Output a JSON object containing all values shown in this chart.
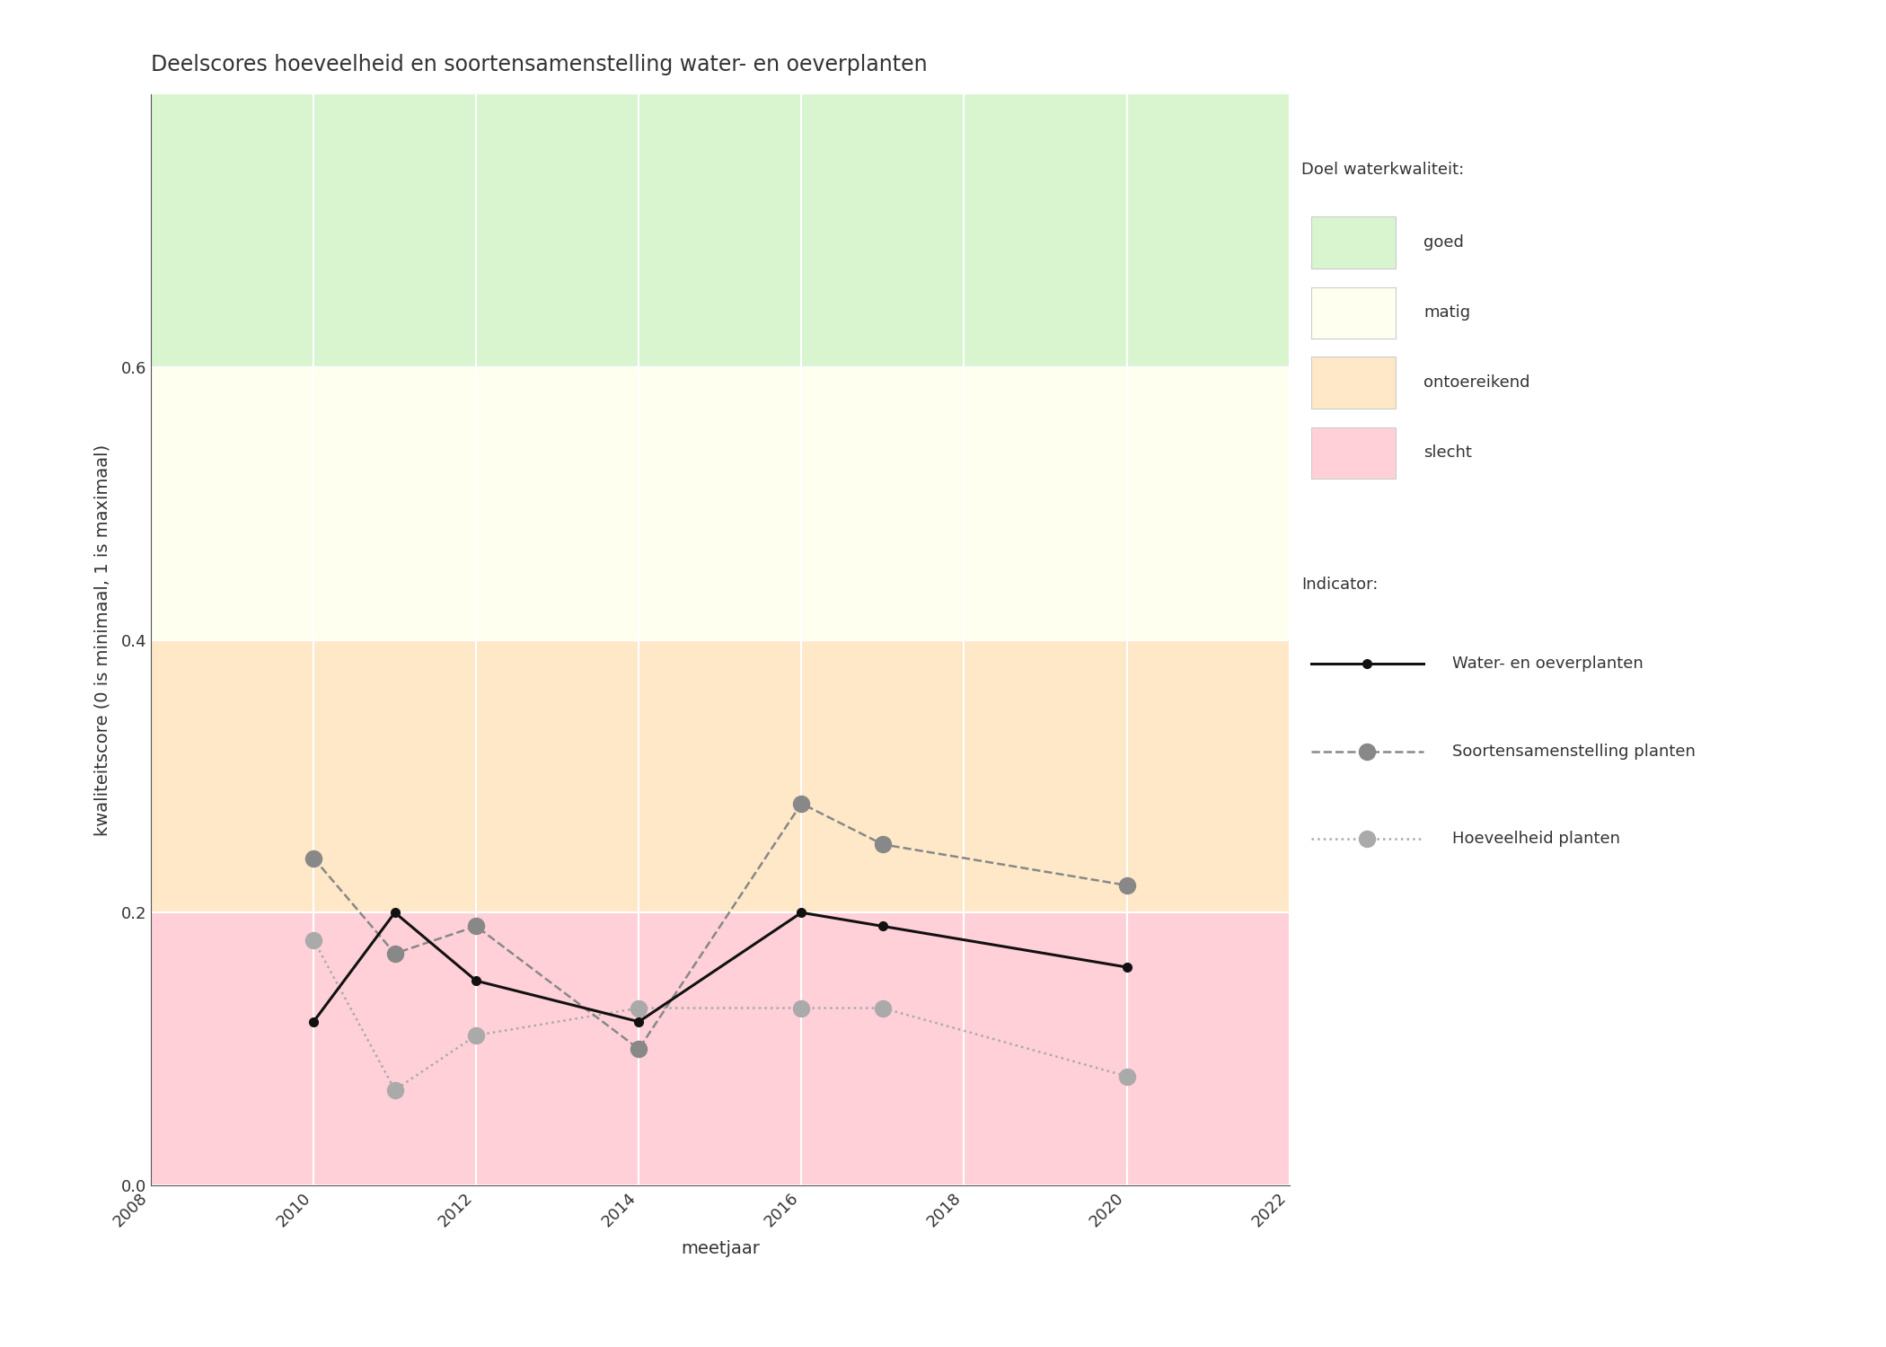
{
  "title": "Deelscores hoeveelheid en soortensamenstelling water- en oeverplanten",
  "xlabel": "meetjaar",
  "ylabel": "kwaliteitscore (0 is minimaal, 1 is maximaal)",
  "xlim": [
    2008,
    2022
  ],
  "ylim": [
    0.0,
    0.8
  ],
  "xticks": [
    2008,
    2010,
    2012,
    2014,
    2016,
    2018,
    2020,
    2022
  ],
  "yticks": [
    0.0,
    0.2,
    0.4,
    0.6
  ],
  "bg_zones": [
    {
      "ymin": 0.0,
      "ymax": 0.2,
      "color": "#FFD0D8",
      "label": "slecht"
    },
    {
      "ymin": 0.2,
      "ymax": 0.4,
      "color": "#FFE8C8",
      "label": "ontoereikend"
    },
    {
      "ymin": 0.4,
      "ymax": 0.6,
      "color": "#FFFFF0",
      "label": "matig"
    },
    {
      "ymin": 0.6,
      "ymax": 0.8,
      "color": "#D8F5D0",
      "label": "goed"
    }
  ],
  "series": [
    {
      "name": "Water- en oeverplanten",
      "x": [
        2010,
        2011,
        2012,
        2014,
        2016,
        2017,
        2020
      ],
      "y": [
        0.12,
        0.2,
        0.15,
        0.12,
        0.2,
        0.19,
        0.16
      ],
      "color": "#111111",
      "linestyle": "solid",
      "linewidth": 2.2,
      "marker": "o",
      "markersize": 7,
      "markerfacecolor": "#111111",
      "zorder": 5
    },
    {
      "name": "Soortensamenstelling planten",
      "x": [
        2010,
        2011,
        2012,
        2014,
        2016,
        2017,
        2020
      ],
      "y": [
        0.24,
        0.17,
        0.19,
        0.1,
        0.28,
        0.25,
        0.22
      ],
      "color": "#888888",
      "linestyle": "dashed",
      "linewidth": 1.8,
      "marker": "o",
      "markersize": 13,
      "markerfacecolor": "#888888",
      "zorder": 4
    },
    {
      "name": "Hoeveelheid planten",
      "x": [
        2010,
        2011,
        2012,
        2014,
        2016,
        2017,
        2020
      ],
      "y": [
        0.18,
        0.07,
        0.11,
        0.13,
        0.13,
        0.13,
        0.08
      ],
      "color": "#AAAAAA",
      "linestyle": "dotted",
      "linewidth": 1.8,
      "marker": "o",
      "markersize": 13,
      "markerfacecolor": "#AAAAAA",
      "zorder": 3
    }
  ],
  "legend_zone_title": "Doel waterkwaliteit:",
  "legend_indicator_title": "Indicator:",
  "bg_zone_colors": [
    "#D8F5D0",
    "#FFFFF0",
    "#FFE8C8",
    "#FFD0D8"
  ],
  "bg_zone_labels": [
    "goed",
    "matig",
    "ontoereikend",
    "slecht"
  ],
  "figure_facecolor": "#FFFFFF",
  "axes_facecolor": "#FFFFFF",
  "title_fontsize": 17,
  "label_fontsize": 14,
  "tick_fontsize": 13
}
